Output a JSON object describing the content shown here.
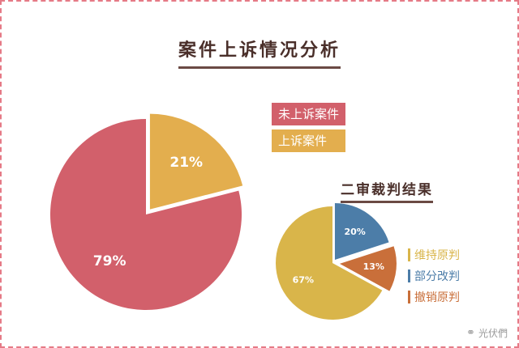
{
  "chart_data": [
    {
      "type": "pie",
      "title": "案件上诉情况分析",
      "categories": [
        "未上诉案件",
        "上诉案件"
      ],
      "values": [
        79,
        21
      ],
      "labels": [
        "79%",
        "21%"
      ],
      "colors": [
        "#d2606b",
        "#e3ae4e"
      ],
      "legend": "right"
    },
    {
      "type": "pie",
      "title": "二审裁判结果",
      "categories": [
        "维持原判",
        "部分改判",
        "撤销原判"
      ],
      "values": [
        67,
        20,
        13
      ],
      "labels": [
        "67%",
        "20%",
        "13%"
      ],
      "colors": [
        "#d9b54a",
        "#4c7da8",
        "#c96f3a"
      ],
      "legend": "right"
    }
  ],
  "watermark": "光伏們"
}
